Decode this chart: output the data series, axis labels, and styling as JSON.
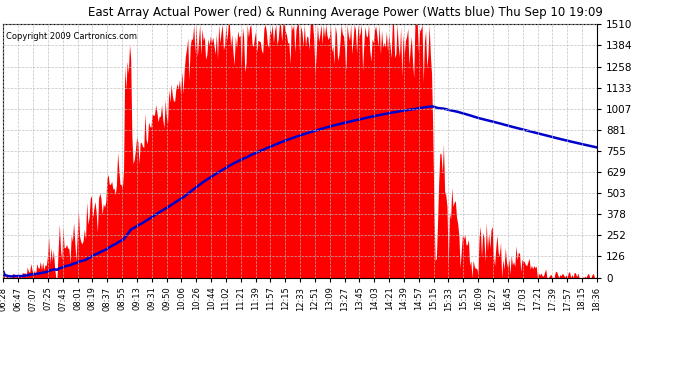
{
  "title": "East Array Actual Power (red) & Running Average Power (Watts blue) Thu Sep 10 19:09",
  "copyright": "Copyright 2009 Cartronics.com",
  "yticks": [
    0.0,
    125.9,
    251.7,
    377.6,
    503.4,
    629.3,
    755.1,
    881.0,
    1006.8,
    1132.7,
    1258.5,
    1384.4,
    1510.2
  ],
  "xlabels": [
    "06:28",
    "06:47",
    "07:07",
    "07:25",
    "07:43",
    "08:01",
    "08:19",
    "08:37",
    "08:55",
    "09:13",
    "09:31",
    "09:50",
    "10:06",
    "10:26",
    "10:44",
    "11:02",
    "11:21",
    "11:39",
    "11:57",
    "12:15",
    "12:33",
    "12:51",
    "13:09",
    "13:27",
    "13:45",
    "14:03",
    "14:21",
    "14:39",
    "14:57",
    "15:15",
    "15:33",
    "15:51",
    "16:09",
    "16:27",
    "16:45",
    "17:03",
    "17:21",
    "17:39",
    "17:57",
    "18:15",
    "18:36"
  ],
  "ymax": 1510.2,
  "ymin": 0.0,
  "bg_color": "#ffffff",
  "plot_bg_color": "#ffffff",
  "grid_color": "#bbbbbb",
  "red_color": "#ff0000",
  "blue_color": "#0000cc",
  "title_color": "#000000",
  "n_points": 500
}
